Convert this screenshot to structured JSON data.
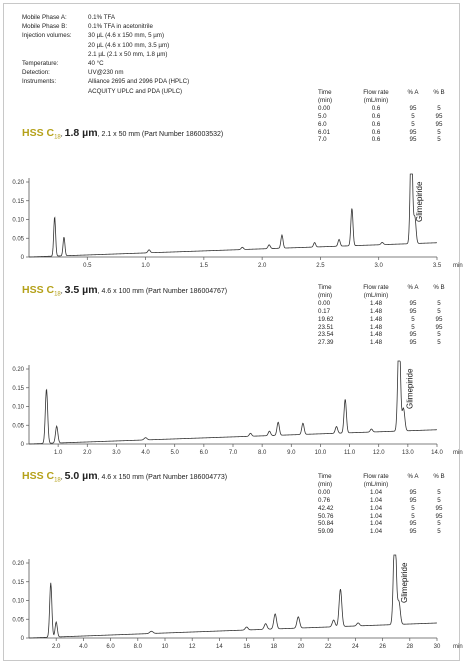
{
  "conditions": [
    {
      "label": "Mobile Phase A:",
      "values": [
        "0.1% TFA"
      ]
    },
    {
      "label": "Mobile Phase B:",
      "values": [
        "0.1% TFA in acetonitrile"
      ]
    },
    {
      "label": "Injection volumes:",
      "values": [
        "30 µL (4.6 x 150 mm, 5 µm)",
        "20 µL (4.6 x 100 mm, 3.5 µm)",
        "2.1 µL (2.1 x 50 mm, 1.8 µm)"
      ]
    },
    {
      "label": "Temperature:",
      "values": [
        "40 °C"
      ]
    },
    {
      "label": "Detection:",
      "values": [
        "UV@230 nm"
      ]
    },
    {
      "label": "Instruments:",
      "values": [
        "Alliance 2695 and 2996 PDA (HPLC)",
        "ACQUITY UPLC and PDA (UPLC)"
      ]
    }
  ],
  "gradient_headers": {
    "col1": [
      "Time",
      "(min)"
    ],
    "col2": [
      "Flow rate",
      "(mL/min)"
    ],
    "col3": [
      "% A",
      ""
    ],
    "col4": [
      "% B",
      ""
    ]
  },
  "chart_data": [
    {
      "type": "line",
      "title": {
        "brand": "HSS C",
        "sub": "18",
        "size": "1.8 µm",
        "rest": ", 2.1 x 50 mm (Part Number 186003532)"
      },
      "xlabel": "min",
      "ylabel": "",
      "xlim": [
        0,
        3.5
      ],
      "ylim": [
        0,
        0.2
      ],
      "xticks": [
        "0.5",
        "1.0",
        "1.5",
        "2.0",
        "2.5",
        "3.0",
        "3.5"
      ],
      "yticks": [
        "0",
        "0.05",
        "0.10",
        "0.15",
        "0.20"
      ],
      "annotation": {
        "text": "Glimepiride",
        "x": 3.27
      },
      "gradient": [
        [
          "0.00",
          "0.6",
          "95",
          "5"
        ],
        [
          "5.0",
          "0.6",
          "5",
          "95"
        ],
        [
          "6.0",
          "0.6",
          "5",
          "95"
        ],
        [
          "6.01",
          "0.6",
          "95",
          "5"
        ],
        [
          "7.0",
          "0.6",
          "95",
          "5"
        ]
      ],
      "baseline": [
        [
          0,
          0.0
        ],
        [
          3.5,
          0.038
        ]
      ],
      "peaks": [
        {
          "x": 0.22,
          "h": 0.105,
          "w": 0.008
        },
        {
          "x": 0.3,
          "h": 0.05,
          "w": 0.008
        },
        {
          "x": 1.03,
          "h": 0.008,
          "w": 0.01
        },
        {
          "x": 1.83,
          "h": 0.006,
          "w": 0.01
        },
        {
          "x": 2.06,
          "h": 0.01,
          "w": 0.01
        },
        {
          "x": 2.17,
          "h": 0.035,
          "w": 0.009
        },
        {
          "x": 2.45,
          "h": 0.012,
          "w": 0.009
        },
        {
          "x": 2.66,
          "h": 0.018,
          "w": 0.009
        },
        {
          "x": 2.77,
          "h": 0.1,
          "w": 0.009
        },
        {
          "x": 3.03,
          "h": 0.006,
          "w": 0.01
        },
        {
          "x": 3.28,
          "h": 0.29,
          "w": 0.01
        },
        {
          "x": 3.31,
          "h": 0.07,
          "w": 0.01
        }
      ]
    },
    {
      "type": "line",
      "title": {
        "brand": "HSS C",
        "sub": "18",
        "size": "3.5 µm",
        "rest": ", 4.6 x 100 mm (Part Number 186004767)"
      },
      "xlabel": "min",
      "ylabel": "",
      "xlim": [
        0,
        14
      ],
      "ylim": [
        0,
        0.2
      ],
      "xticks": [
        "1.0",
        "2.0",
        "3.0",
        "4.0",
        "5.0",
        "6.0",
        "7.0",
        "8.0",
        "9.0",
        "10.0",
        "11.0",
        "12.0",
        "13.0",
        "14.0"
      ],
      "yticks": [
        "0",
        "0.05",
        "0.10",
        "0.15",
        "0.20"
      ],
      "annotation": {
        "text": "Glimepiride",
        "x": 12.75
      },
      "gradient": [
        [
          "0.00",
          "1.48",
          "95",
          "5"
        ],
        [
          "0.17",
          "1.48",
          "95",
          "5"
        ],
        [
          "19.62",
          "1.48",
          "5",
          "95"
        ],
        [
          "23.51",
          "1.48",
          "5",
          "95"
        ],
        [
          "23.54",
          "1.48",
          "95",
          "5"
        ],
        [
          "27.39",
          "1.48",
          "95",
          "5"
        ]
      ],
      "baseline": [
        [
          0,
          0.0
        ],
        [
          14,
          0.038
        ]
      ],
      "peaks": [
        {
          "x": 0.6,
          "h": 0.145,
          "w": 0.04
        },
        {
          "x": 0.95,
          "h": 0.045,
          "w": 0.04
        },
        {
          "x": 4.0,
          "h": 0.006,
          "w": 0.05
        },
        {
          "x": 7.6,
          "h": 0.008,
          "w": 0.04
        },
        {
          "x": 8.25,
          "h": 0.012,
          "w": 0.04
        },
        {
          "x": 8.55,
          "h": 0.035,
          "w": 0.04
        },
        {
          "x": 9.4,
          "h": 0.03,
          "w": 0.04
        },
        {
          "x": 10.55,
          "h": 0.018,
          "w": 0.04
        },
        {
          "x": 10.85,
          "h": 0.09,
          "w": 0.04
        },
        {
          "x": 11.75,
          "h": 0.008,
          "w": 0.04
        },
        {
          "x": 12.7,
          "h": 0.27,
          "w": 0.045
        },
        {
          "x": 12.85,
          "h": 0.06,
          "w": 0.045
        }
      ]
    },
    {
      "type": "line",
      "title": {
        "brand": "HSS C",
        "sub": "18",
        "size": "5.0 µm",
        "rest": ", 4.6 x 150 mm (Part Number 186004773)"
      },
      "xlabel": "min",
      "ylabel": "",
      "xlim": [
        0,
        30
      ],
      "ylim": [
        0,
        0.2
      ],
      "xticks": [
        "2.0",
        "4.0",
        "6.0",
        "8.0",
        "10",
        "12",
        "14",
        "16",
        "18",
        "20",
        "22",
        "24",
        "26",
        "28",
        "30"
      ],
      "yticks": [
        "0",
        "0.05",
        "0.10",
        "0.15",
        "0.20"
      ],
      "annotation": {
        "text": "Glimepiride",
        "x": 26.9
      },
      "gradient": [
        [
          "0.00",
          "1.04",
          "95",
          "5"
        ],
        [
          "0.76",
          "1.04",
          "95",
          "5"
        ],
        [
          "42.42",
          "1.04",
          "5",
          "95"
        ],
        [
          "50.76",
          "1.04",
          "5",
          "95"
        ],
        [
          "50.84",
          "1.04",
          "95",
          "5"
        ],
        [
          "59.09",
          "1.04",
          "95",
          "5"
        ]
      ],
      "baseline": [
        [
          0,
          0.0
        ],
        [
          30,
          0.04
        ]
      ],
      "peaks": [
        {
          "x": 1.6,
          "h": 0.145,
          "w": 0.08
        },
        {
          "x": 2.0,
          "h": 0.04,
          "w": 0.08
        },
        {
          "x": 9.0,
          "h": 0.006,
          "w": 0.12
        },
        {
          "x": 16.0,
          "h": 0.008,
          "w": 0.1
        },
        {
          "x": 17.4,
          "h": 0.015,
          "w": 0.1
        },
        {
          "x": 18.1,
          "h": 0.04,
          "w": 0.1
        },
        {
          "x": 19.8,
          "h": 0.03,
          "w": 0.1
        },
        {
          "x": 22.4,
          "h": 0.018,
          "w": 0.1
        },
        {
          "x": 22.9,
          "h": 0.1,
          "w": 0.1
        },
        {
          "x": 24.2,
          "h": 0.008,
          "w": 0.1
        },
        {
          "x": 26.9,
          "h": 0.27,
          "w": 0.1
        },
        {
          "x": 27.2,
          "h": 0.06,
          "w": 0.1
        }
      ]
    }
  ],
  "colors": {
    "brand": "#b5a11a",
    "trace": "#333333",
    "axis": "#555555"
  }
}
